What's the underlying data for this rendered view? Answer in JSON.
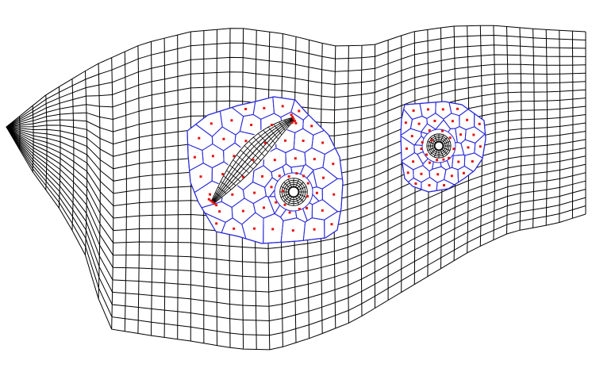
{
  "diagram": {
    "kind": "warped-quadrilateral-mesh-with-voronoi-refinement",
    "grid": {
      "columns": 44,
      "rows": 22
    },
    "regions": [
      {
        "name": "left-polygonal-region",
        "hole_count": 1,
        "has_curved_crack": true
      },
      {
        "name": "right-polygonal-region",
        "hole_count": 1,
        "has_curved_crack": false
      }
    ],
    "colors": {
      "background": "#ffffff",
      "mesh_line": "#000000",
      "cell_boundary": "#2a2ad8",
      "node_marker": "#e41414",
      "crack": "#000000",
      "crack_tip": "#e41414"
    }
  }
}
